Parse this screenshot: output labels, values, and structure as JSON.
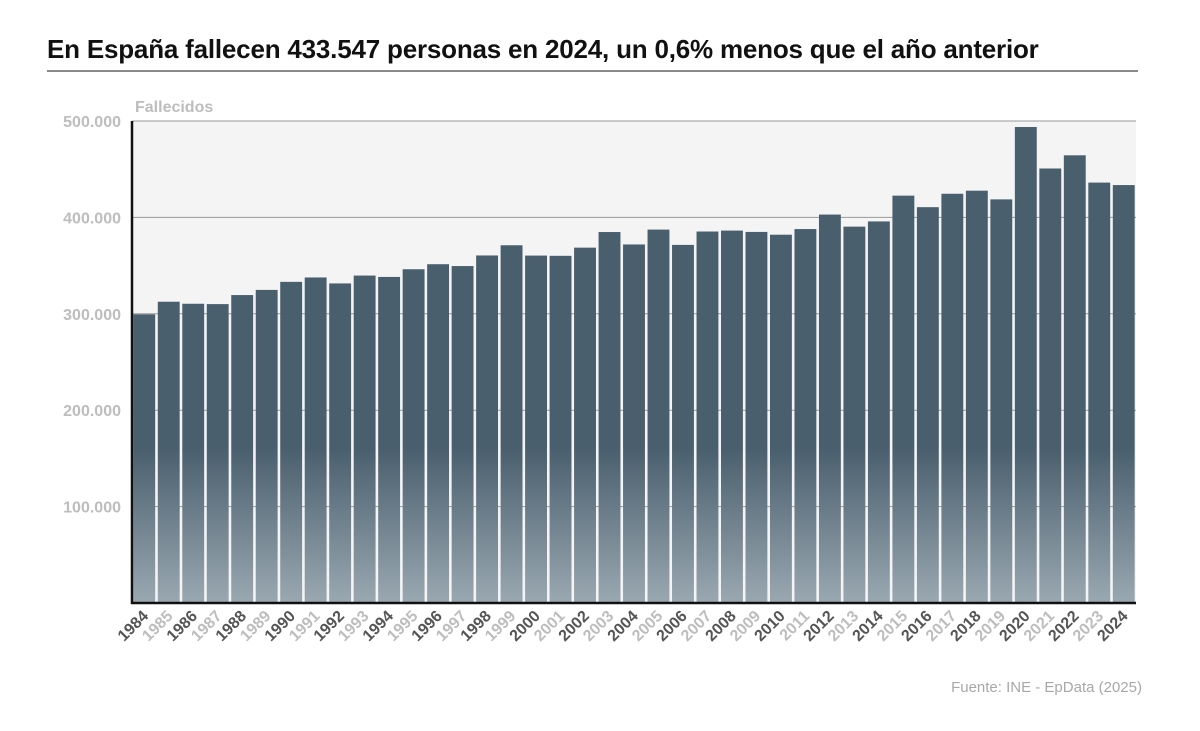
{
  "title": "En España fallecen 433.547 personas en 2024, un 0,6% menos que el año anterior",
  "source": "Fuente: INE - EpData (2025)",
  "colors": {
    "bar": "#4a5f6e",
    "bar_fade": "#9aa8b1",
    "plot_bg": "#f4f4f4",
    "grid": "#9a9a9a",
    "axis": "#111111",
    "tick_dark": "#555555",
    "tick_light": "#bdbdbd"
  },
  "chart_data": {
    "type": "bar",
    "ylabel": "Fallecidos",
    "xlabel": "",
    "ylim": [
      0,
      500000
    ],
    "yticks": [
      100000,
      200000,
      300000,
      400000,
      500000
    ],
    "ytick_labels": [
      "100.000",
      "200.000",
      "300.000",
      "400.000",
      "500.000"
    ],
    "grid": true,
    "legend": "none",
    "categories": [
      "1984",
      "1985",
      "1986",
      "1987",
      "1988",
      "1989",
      "1990",
      "1991",
      "1992",
      "1993",
      "1994",
      "1995",
      "1996",
      "1997",
      "1998",
      "1999",
      "2000",
      "2001",
      "2002",
      "2003",
      "2004",
      "2005",
      "2006",
      "2007",
      "2008",
      "2009",
      "2010",
      "2011",
      "2012",
      "2013",
      "2014",
      "2015",
      "2016",
      "2017",
      "2018",
      "2019",
      "2020",
      "2021",
      "2022",
      "2023",
      "2024"
    ],
    "values": [
      299409,
      312532,
      310413,
      310073,
      319437,
      324796,
      333142,
      337691,
      331515,
      339661,
      338242,
      346227,
      351449,
      349521,
      360511,
      371102,
      360391,
      360131,
      368618,
      384828,
      371934,
      387355,
      371478,
      385361,
      386324,
      384933,
      382047,
      387911,
      402950,
      390419,
      395830,
      422568,
      410611,
      424523,
      427721,
      418703,
      493776,
      450744,
      464417,
      436118,
      433547
    ]
  }
}
